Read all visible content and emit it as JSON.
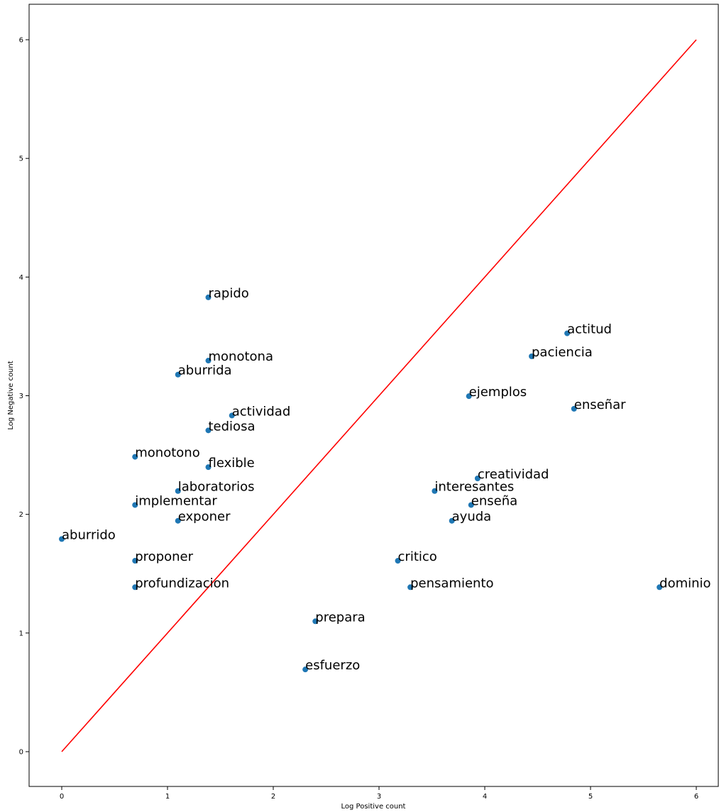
{
  "chart_data": {
    "type": "scatter",
    "title": "",
    "xlabel": "Log Positive count",
    "ylabel": "Log Negative count",
    "xlim": [
      -0.3,
      6.2
    ],
    "ylim": [
      -0.3,
      6.3
    ],
    "xticks": [
      0,
      1,
      2,
      3,
      4,
      5,
      6
    ],
    "yticks": [
      0,
      1,
      2,
      3,
      4,
      5,
      6
    ],
    "grid": false,
    "point_color": "#1f77b4",
    "line_color": "#ff0000",
    "reference_line": {
      "x": [
        0,
        6
      ],
      "y": [
        0,
        6
      ]
    },
    "points": [
      {
        "label": "rapido",
        "x": 1.386,
        "y": 3.829
      },
      {
        "label": "monotona",
        "x": 1.386,
        "y": 3.296
      },
      {
        "label": "aburrida",
        "x": 1.099,
        "y": 3.178
      },
      {
        "label": "actividad",
        "x": 1.609,
        "y": 2.833
      },
      {
        "label": "tediosa",
        "x": 1.386,
        "y": 2.708
      },
      {
        "label": "monotono",
        "x": 0.693,
        "y": 2.485
      },
      {
        "label": "flexible",
        "x": 1.386,
        "y": 2.398
      },
      {
        "label": "laboratorios",
        "x": 1.099,
        "y": 2.197
      },
      {
        "label": "implementar",
        "x": 0.693,
        "y": 2.079
      },
      {
        "label": "exponer",
        "x": 1.099,
        "y": 1.946
      },
      {
        "label": "aburrido",
        "x": 0.0,
        "y": 1.792
      },
      {
        "label": "proponer",
        "x": 0.693,
        "y": 1.609
      },
      {
        "label": "profundizacion",
        "x": 0.693,
        "y": 1.386
      },
      {
        "label": "prepara",
        "x": 2.398,
        "y": 1.099
      },
      {
        "label": "esfuerzo",
        "x": 2.303,
        "y": 0.693
      },
      {
        "label": "critico",
        "x": 3.178,
        "y": 1.609
      },
      {
        "label": "pensamiento",
        "x": 3.296,
        "y": 1.386
      },
      {
        "label": "ayuda",
        "x": 3.689,
        "y": 1.946
      },
      {
        "label": "enseña",
        "x": 3.871,
        "y": 2.079
      },
      {
        "label": "interesantes",
        "x": 3.526,
        "y": 2.197
      },
      {
        "label": "creatividad",
        "x": 3.932,
        "y": 2.303
      },
      {
        "label": "ejemplos",
        "x": 3.85,
        "y": 2.996
      },
      {
        "label": "enseñar",
        "x": 4.844,
        "y": 2.89
      },
      {
        "label": "paciencia",
        "x": 4.443,
        "y": 3.332
      },
      {
        "label": "actitud",
        "x": 4.779,
        "y": 3.526
      },
      {
        "label": "dominio",
        "x": 5.652,
        "y": 1.386
      }
    ]
  }
}
